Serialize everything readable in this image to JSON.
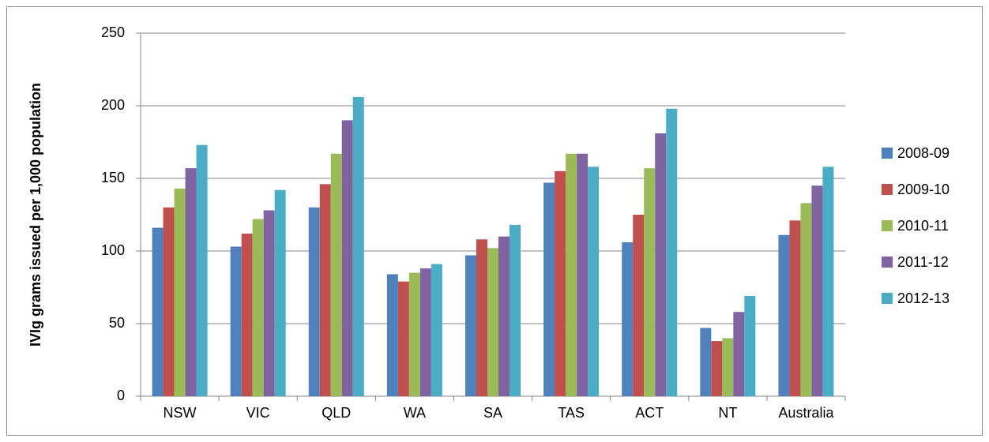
{
  "chart_data": {
    "type": "bar",
    "ylabel": "IVIg grams issued per 1,000 population",
    "categories": [
      "NSW",
      "VIC",
      "QLD",
      "WA",
      "SA",
      "TAS",
      "ACT",
      "NT",
      "Australia"
    ],
    "series": [
      {
        "name": "2008-09",
        "color": "#4f81bd",
        "values": [
          116,
          103,
          130,
          84,
          97,
          147,
          106,
          47,
          111
        ]
      },
      {
        "name": "2009-10",
        "color": "#c0504d",
        "values": [
          130,
          112,
          146,
          79,
          108,
          155,
          125,
          38,
          121
        ]
      },
      {
        "name": "2010-11",
        "color": "#9bbb59",
        "values": [
          143,
          122,
          167,
          85,
          102,
          167,
          157,
          40,
          133
        ]
      },
      {
        "name": "2011-12",
        "color": "#8064a2",
        "values": [
          157,
          128,
          190,
          88,
          110,
          167,
          181,
          58,
          145
        ]
      },
      {
        "name": "2012-13",
        "color": "#4bacc6",
        "values": [
          173,
          142,
          206,
          91,
          118,
          158,
          198,
          69,
          158
        ]
      }
    ],
    "ylim": [
      0,
      250
    ],
    "yticks": [
      0,
      50,
      100,
      150,
      200,
      250
    ],
    "grid": true,
    "legend": "right"
  }
}
